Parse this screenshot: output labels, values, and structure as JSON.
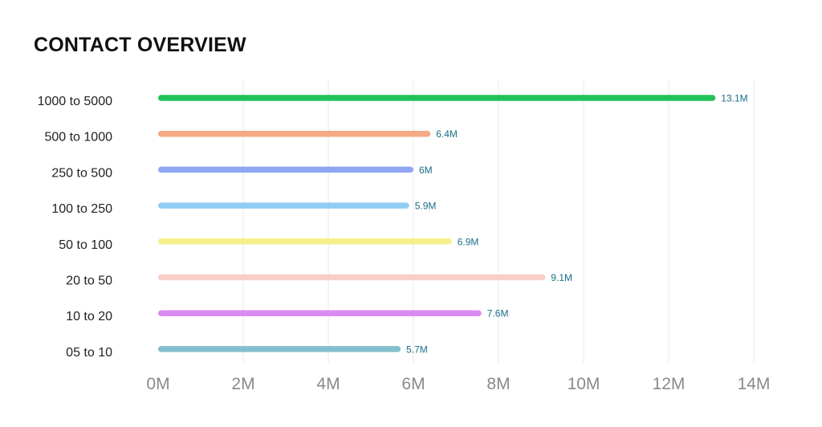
{
  "chart_data": {
    "type": "bar",
    "orientation": "horizontal",
    "title": "CONTACT OVERVIEW",
    "xlabel": "",
    "ylabel": "",
    "categories": [
      "1000 to 5000",
      "500 to 1000",
      "250 to 500",
      "100 to 250",
      "50 to 100",
      "20 to 50",
      "10 to 20",
      "05 to 10"
    ],
    "values": [
      13.1,
      6.4,
      6.0,
      5.9,
      6.9,
      9.1,
      7.6,
      5.7
    ],
    "value_labels": [
      "13.1M",
      "6.4M",
      "6M",
      "5.9M",
      "6.9M",
      "9.1M",
      "7.6M",
      "5.7M"
    ],
    "bar_colors": [
      "#22c25a",
      "#f4aa84",
      "#8fa6f2",
      "#90cdf4",
      "#f6f08a",
      "#f8cfc8",
      "#d98cf0",
      "#86bfcd"
    ],
    "x_ticks": [
      0,
      2,
      4,
      6,
      8,
      10,
      12,
      14
    ],
    "x_tick_labels": [
      "0M",
      "2M",
      "4M",
      "6M",
      "8M",
      "10M",
      "12M",
      "14M"
    ],
    "xlim": [
      0,
      14
    ],
    "grid": "vertical",
    "value_label_color": "#1a6f86"
  }
}
